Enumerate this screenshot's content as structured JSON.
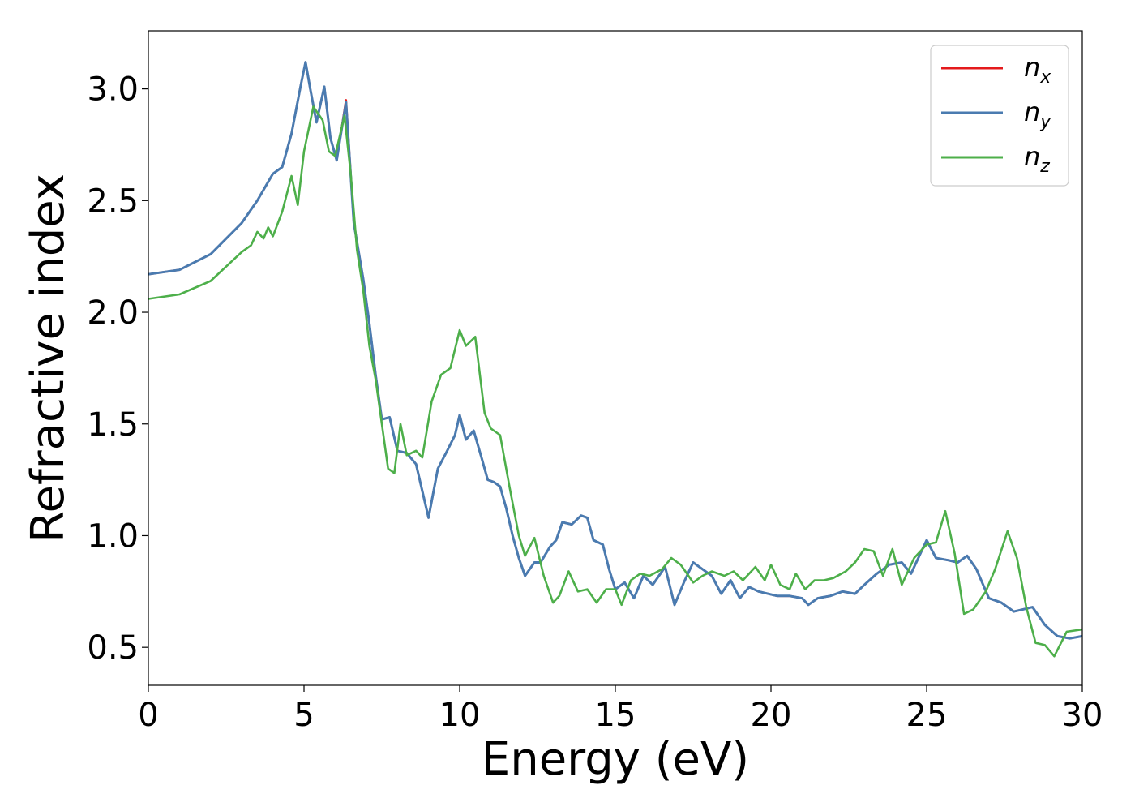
{
  "chart_data": {
    "type": "line",
    "title": "",
    "xlabel": "Energy (eV)",
    "ylabel": "Refractive index",
    "xlim": [
      0,
      30
    ],
    "ylim": [
      0.33,
      3.26
    ],
    "xticks": [
      0,
      5,
      10,
      15,
      20,
      25,
      30
    ],
    "xtick_labels": [
      "0",
      "5",
      "10",
      "15",
      "20",
      "25",
      "30"
    ],
    "yticks": [
      0.5,
      1.0,
      1.5,
      2.0,
      2.5,
      3.0
    ],
    "ytick_labels": [
      "0.5",
      "1.0",
      "1.5",
      "2.0",
      "2.5",
      "3.0"
    ],
    "grid": false,
    "legend_position": "top-right",
    "series": [
      {
        "name": "n",
        "subscript": "x",
        "color": "#e41a1c",
        "x": [
          0,
          1,
          2,
          3,
          3.5,
          4,
          4.3,
          4.6,
          4.9,
          5.05,
          5.2,
          5.4,
          5.65,
          5.85,
          6.05,
          6.35,
          6.6,
          6.9,
          7.1,
          7.3,
          7.5,
          7.75,
          8.0,
          8.3,
          8.6,
          8.8,
          9.0,
          9.3,
          9.6,
          9.85,
          10.0,
          10.2,
          10.45,
          10.7,
          10.9,
          11.1,
          11.3,
          11.5,
          11.7,
          11.9,
          12.1,
          12.4,
          12.6,
          12.9,
          13.1,
          13.3,
          13.6,
          13.9,
          14.1,
          14.3,
          14.6,
          14.8,
          15.0,
          15.3,
          15.6,
          15.9,
          16.2,
          16.6,
          16.9,
          17.2,
          17.5,
          17.8,
          18.1,
          18.4,
          18.7,
          19.0,
          19.3,
          19.6,
          19.9,
          20.2,
          20.6,
          21.0,
          21.2,
          21.5,
          21.9,
          22.3,
          22.7,
          23.0,
          23.4,
          23.8,
          24.2,
          24.5,
          24.8,
          25.0,
          25.3,
          25.7,
          26.0,
          26.3,
          26.6,
          27.0,
          27.4,
          27.8,
          28.1,
          28.4,
          28.8,
          29.2,
          29.6,
          30.0
        ],
        "y": [
          2.17,
          2.19,
          2.26,
          2.4,
          2.5,
          2.62,
          2.65,
          2.8,
          3.02,
          3.12,
          3.0,
          2.85,
          3.01,
          2.78,
          2.68,
          2.95,
          2.4,
          2.15,
          1.95,
          1.72,
          1.52,
          1.53,
          1.38,
          1.37,
          1.32,
          1.2,
          1.08,
          1.3,
          1.38,
          1.45,
          1.54,
          1.43,
          1.47,
          1.35,
          1.25,
          1.24,
          1.22,
          1.12,
          1.0,
          0.9,
          0.82,
          0.88,
          0.88,
          0.95,
          0.98,
          1.06,
          1.05,
          1.09,
          1.08,
          0.98,
          0.96,
          0.85,
          0.76,
          0.79,
          0.72,
          0.82,
          0.78,
          0.86,
          0.69,
          0.79,
          0.88,
          0.85,
          0.82,
          0.74,
          0.8,
          0.72,
          0.77,
          0.75,
          0.74,
          0.73,
          0.73,
          0.72,
          0.69,
          0.72,
          0.73,
          0.75,
          0.74,
          0.78,
          0.83,
          0.87,
          0.88,
          0.83,
          0.92,
          0.98,
          0.9,
          0.89,
          0.88,
          0.91,
          0.85,
          0.72,
          0.7,
          0.66,
          0.67,
          0.68,
          0.6,
          0.55,
          0.54,
          0.55
        ]
      },
      {
        "name": "n",
        "subscript": "y",
        "color": "#4a7bb0",
        "x": [
          0,
          1,
          2,
          3,
          3.5,
          4,
          4.3,
          4.6,
          4.9,
          5.05,
          5.2,
          5.4,
          5.65,
          5.85,
          6.05,
          6.35,
          6.6,
          6.9,
          7.1,
          7.3,
          7.5,
          7.75,
          8.0,
          8.3,
          8.6,
          8.8,
          9.0,
          9.3,
          9.6,
          9.85,
          10.0,
          10.2,
          10.45,
          10.7,
          10.9,
          11.1,
          11.3,
          11.5,
          11.7,
          11.9,
          12.1,
          12.4,
          12.6,
          12.9,
          13.1,
          13.3,
          13.6,
          13.9,
          14.1,
          14.3,
          14.6,
          14.8,
          15.0,
          15.3,
          15.6,
          15.9,
          16.2,
          16.6,
          16.9,
          17.2,
          17.5,
          17.8,
          18.1,
          18.4,
          18.7,
          19.0,
          19.3,
          19.6,
          19.9,
          20.2,
          20.6,
          21.0,
          21.2,
          21.5,
          21.9,
          22.3,
          22.7,
          23.0,
          23.4,
          23.8,
          24.2,
          24.5,
          24.8,
          25.0,
          25.3,
          25.7,
          26.0,
          26.3,
          26.6,
          27.0,
          27.4,
          27.8,
          28.1,
          28.4,
          28.8,
          29.2,
          29.6,
          30.0
        ],
        "y": [
          2.17,
          2.19,
          2.26,
          2.4,
          2.5,
          2.62,
          2.65,
          2.8,
          3.02,
          3.12,
          3.0,
          2.85,
          3.01,
          2.78,
          2.68,
          2.94,
          2.4,
          2.15,
          1.95,
          1.72,
          1.52,
          1.53,
          1.38,
          1.37,
          1.32,
          1.2,
          1.08,
          1.3,
          1.38,
          1.45,
          1.54,
          1.43,
          1.47,
          1.35,
          1.25,
          1.24,
          1.22,
          1.12,
          1.0,
          0.9,
          0.82,
          0.88,
          0.88,
          0.95,
          0.98,
          1.06,
          1.05,
          1.09,
          1.08,
          0.98,
          0.96,
          0.85,
          0.76,
          0.79,
          0.72,
          0.82,
          0.78,
          0.86,
          0.69,
          0.79,
          0.88,
          0.85,
          0.82,
          0.74,
          0.8,
          0.72,
          0.77,
          0.75,
          0.74,
          0.73,
          0.73,
          0.72,
          0.69,
          0.72,
          0.73,
          0.75,
          0.74,
          0.78,
          0.83,
          0.87,
          0.88,
          0.83,
          0.92,
          0.98,
          0.9,
          0.89,
          0.88,
          0.91,
          0.85,
          0.72,
          0.7,
          0.66,
          0.67,
          0.68,
          0.6,
          0.55,
          0.54,
          0.55
        ]
      },
      {
        "name": "n",
        "subscript": "z",
        "color": "#4daf4a",
        "x": [
          0,
          1,
          2,
          3,
          3.3,
          3.5,
          3.7,
          3.85,
          4.0,
          4.3,
          4.6,
          4.8,
          5.0,
          5.3,
          5.6,
          5.8,
          6.0,
          6.3,
          6.5,
          6.7,
          6.9,
          7.1,
          7.3,
          7.5,
          7.7,
          7.9,
          8.1,
          8.3,
          8.6,
          8.8,
          9.1,
          9.4,
          9.7,
          10.0,
          10.2,
          10.5,
          10.8,
          11.0,
          11.3,
          11.6,
          11.9,
          12.1,
          12.4,
          12.7,
          13.0,
          13.2,
          13.5,
          13.8,
          14.1,
          14.4,
          14.7,
          15.0,
          15.2,
          15.5,
          15.8,
          16.1,
          16.5,
          16.8,
          17.1,
          17.5,
          17.8,
          18.1,
          18.5,
          18.8,
          19.1,
          19.5,
          19.8,
          20.0,
          20.3,
          20.6,
          20.8,
          21.1,
          21.4,
          21.7,
          22.0,
          22.4,
          22.7,
          23.0,
          23.3,
          23.6,
          23.9,
          24.2,
          24.6,
          25.0,
          25.3,
          25.6,
          25.9,
          26.2,
          26.5,
          26.9,
          27.2,
          27.6,
          27.9,
          28.2,
          28.5,
          28.8,
          29.1,
          29.5,
          30.0
        ],
        "y": [
          2.06,
          2.08,
          2.14,
          2.27,
          2.3,
          2.36,
          2.33,
          2.38,
          2.34,
          2.45,
          2.61,
          2.48,
          2.72,
          2.92,
          2.86,
          2.72,
          2.7,
          2.88,
          2.62,
          2.28,
          2.1,
          1.85,
          1.7,
          1.5,
          1.3,
          1.28,
          1.5,
          1.36,
          1.38,
          1.35,
          1.6,
          1.72,
          1.75,
          1.92,
          1.85,
          1.89,
          1.55,
          1.48,
          1.45,
          1.22,
          1.0,
          0.91,
          0.99,
          0.82,
          0.7,
          0.73,
          0.84,
          0.75,
          0.76,
          0.7,
          0.76,
          0.76,
          0.69,
          0.8,
          0.83,
          0.82,
          0.85,
          0.9,
          0.87,
          0.79,
          0.82,
          0.84,
          0.82,
          0.84,
          0.8,
          0.86,
          0.8,
          0.87,
          0.78,
          0.76,
          0.83,
          0.76,
          0.8,
          0.8,
          0.81,
          0.84,
          0.88,
          0.94,
          0.93,
          0.82,
          0.94,
          0.78,
          0.9,
          0.96,
          0.97,
          1.11,
          0.92,
          0.65,
          0.67,
          0.75,
          0.85,
          1.02,
          0.9,
          0.68,
          0.52,
          0.51,
          0.46,
          0.57,
          0.58
        ]
      }
    ]
  }
}
